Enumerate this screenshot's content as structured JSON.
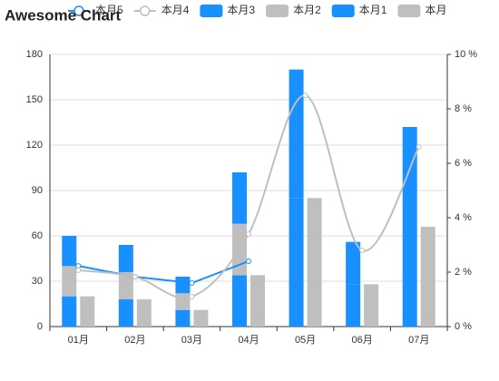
{
  "chart_data": {
    "type": "bar",
    "title": "Awesome Chart",
    "categories": [
      "01月",
      "02月",
      "03月",
      "04月",
      "05月",
      "06月",
      "07月"
    ],
    "series": [
      {
        "name": "本月5",
        "type": "line",
        "axis": "y2",
        "smooth": false,
        "color": "#1890ff",
        "values": [
          2.23,
          1.83,
          1.6,
          2.4,
          null,
          null,
          null
        ]
      },
      {
        "name": "本月4",
        "type": "line",
        "axis": "y2",
        "smooth": true,
        "color": "#bfbfbf",
        "values": [
          2.07,
          1.83,
          1.1,
          3.4,
          8.5,
          2.8,
          6.6
        ]
      },
      {
        "name": "本月3",
        "type": "bar",
        "stack": "a",
        "color": "#1890ff",
        "values": [
          20,
          18,
          11,
          34,
          85,
          28,
          66
        ]
      },
      {
        "name": "本月2",
        "type": "bar",
        "stack": "a",
        "color": "#bfbfbf",
        "values": [
          20,
          18,
          11,
          34,
          0,
          0,
          0
        ]
      },
      {
        "name": "本月1",
        "type": "bar",
        "stack": "a",
        "color": "#1890ff",
        "values": [
          20,
          18,
          11,
          34,
          85,
          28,
          66
        ]
      },
      {
        "name": "本月",
        "type": "bar",
        "stack": "b",
        "color": "#bfbfbf",
        "values": [
          20,
          18,
          11,
          34,
          85,
          28,
          66
        ]
      }
    ],
    "ylim": [
      0,
      180
    ],
    "yticks": [
      0,
      30,
      60,
      90,
      120,
      150,
      180
    ],
    "y2lim": [
      0,
      10
    ],
    "y2ticks": [
      {
        "value": 0,
        "label": "0 %"
      },
      {
        "value": 2,
        "label": "2 %"
      },
      {
        "value": 4,
        "label": "4 %"
      },
      {
        "value": 6,
        "label": "6 %"
      },
      {
        "value": 8,
        "label": "8 %"
      },
      {
        "value": 10,
        "label": "10 %"
      }
    ],
    "grid": true
  }
}
